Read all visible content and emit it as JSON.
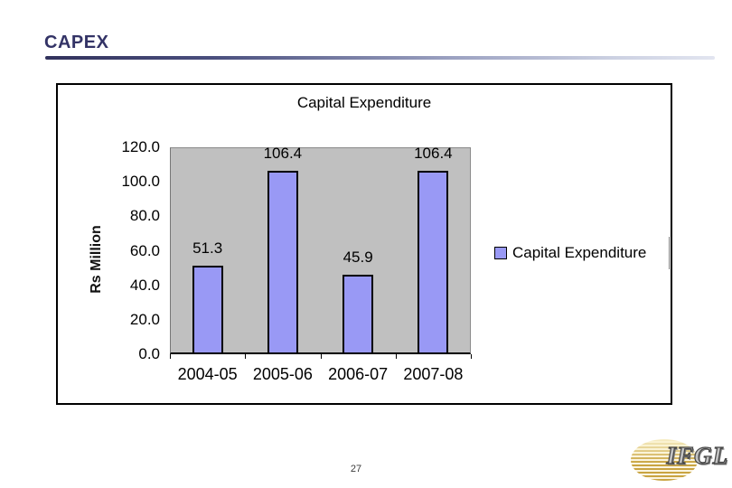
{
  "slide": {
    "title": "CAPEX",
    "page_number": "27",
    "accent_color": "#333366"
  },
  "logo": {
    "text": "IFGL",
    "sun_color": "#c9a441"
  },
  "chart_data": {
    "type": "bar",
    "title": "Capital Expenditure",
    "categories": [
      "2004-05",
      "2005-06",
      "2006-07",
      "2007-08"
    ],
    "values": [
      51.3,
      106.4,
      45.9,
      106.4
    ],
    "data_labels": [
      "51.3",
      "106.4",
      "45.9",
      "106.4"
    ],
    "ylabel": "Rs Million",
    "ylim": [
      0,
      120
    ],
    "ytick_step": 20,
    "ytick_labels": [
      "120.0",
      "100.0",
      "80.0",
      "60.0",
      "40.0",
      "20.0",
      "0.0"
    ],
    "legend": {
      "label": "Capital Expenditure",
      "position": "right"
    },
    "bar_color": "#9999f5",
    "bar_border_color": "#000000",
    "plot_bg": "#c0c0c0",
    "grid": false
  }
}
